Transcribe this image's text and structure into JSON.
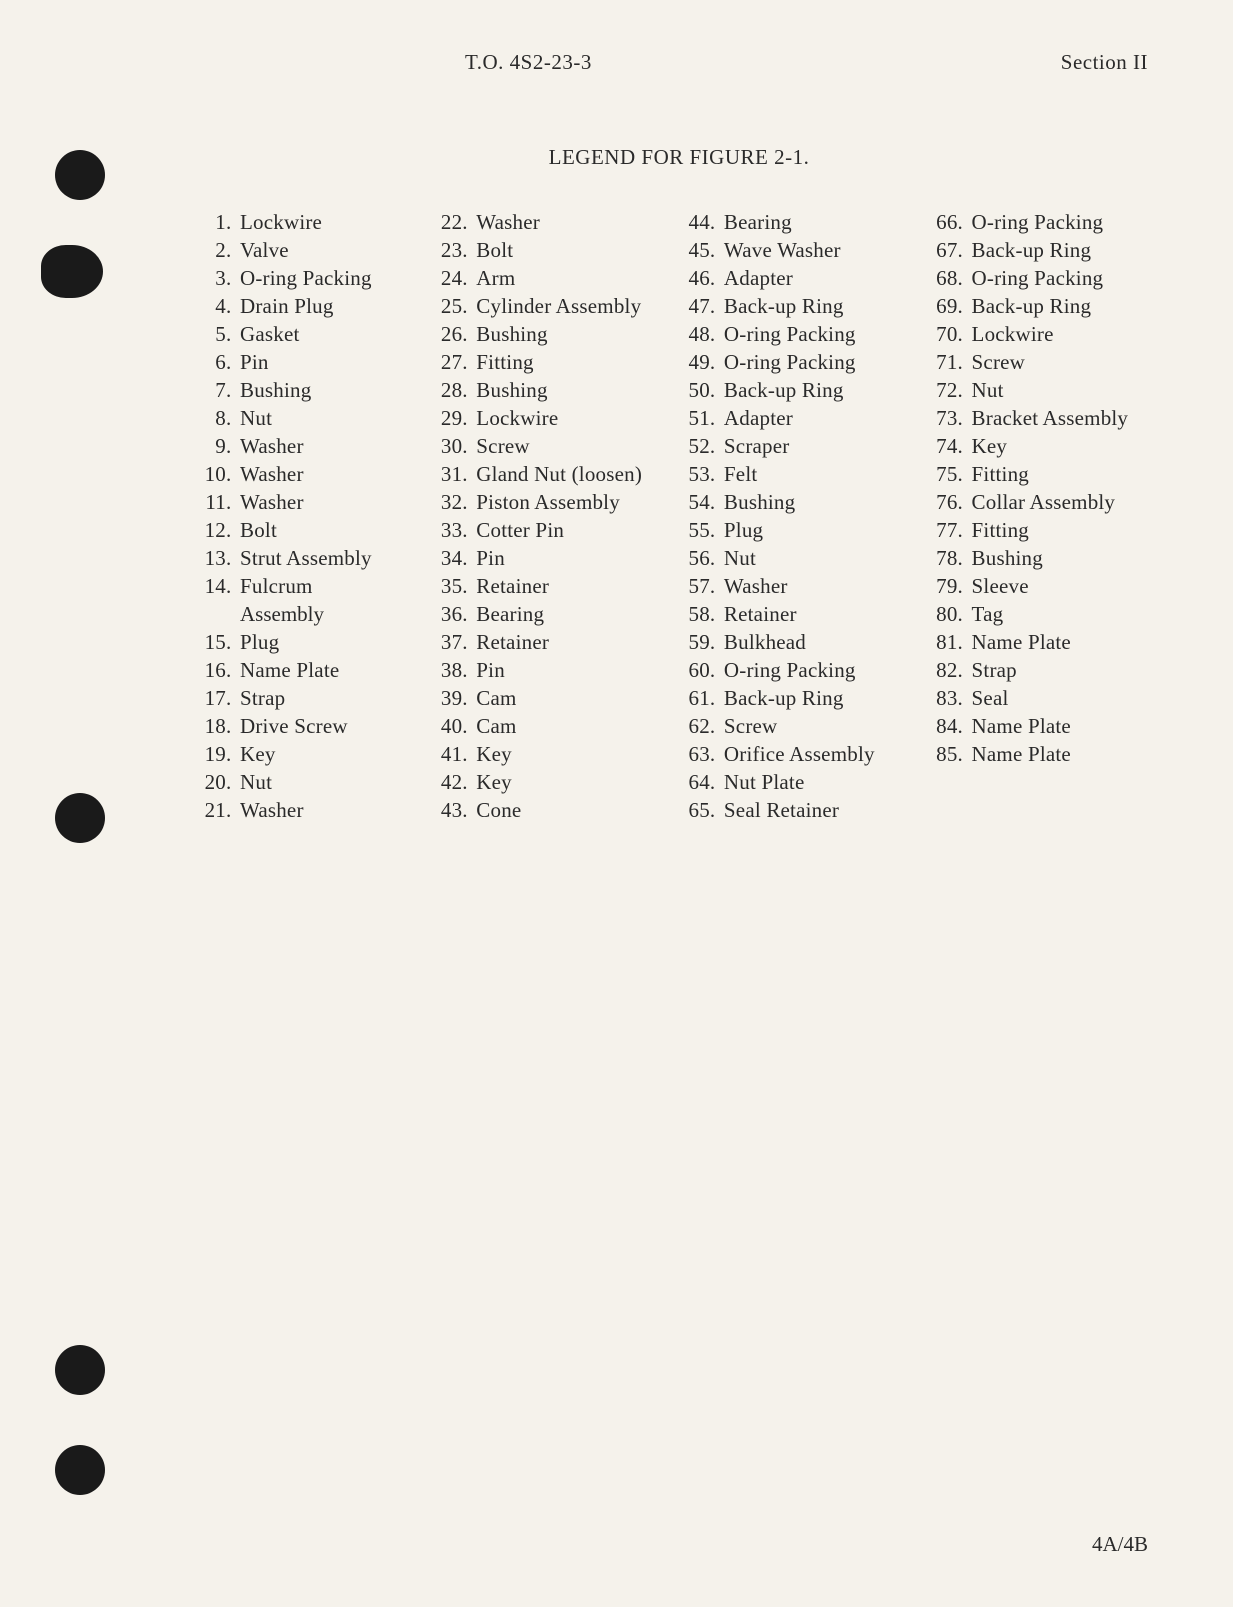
{
  "header": {
    "documentNumber": "T.O. 4S2-23-3",
    "section": "Section II"
  },
  "title": "LEGEND FOR FIGURE 2-1.",
  "columns": [
    [
      {
        "num": "1",
        "text": "Lockwire"
      },
      {
        "num": "2",
        "text": "Valve"
      },
      {
        "num": "3",
        "text": "O-ring Packing"
      },
      {
        "num": "4",
        "text": "Drain Plug"
      },
      {
        "num": "5",
        "text": "Gasket"
      },
      {
        "num": "6",
        "text": "Pin"
      },
      {
        "num": "7",
        "text": "Bushing"
      },
      {
        "num": "8",
        "text": "Nut"
      },
      {
        "num": "9",
        "text": "Washer"
      },
      {
        "num": "10",
        "text": "Washer"
      },
      {
        "num": "11",
        "text": "Washer"
      },
      {
        "num": "12",
        "text": "Bolt"
      },
      {
        "num": "13",
        "text": "Strut Assembly"
      },
      {
        "num": "14",
        "text": "Fulcrum",
        "continuation": "Assembly"
      },
      {
        "num": "15",
        "text": "Plug"
      },
      {
        "num": "16",
        "text": "Name Plate"
      },
      {
        "num": "17",
        "text": "Strap"
      },
      {
        "num": "18",
        "text": "Drive Screw"
      },
      {
        "num": "19",
        "text": "Key"
      },
      {
        "num": "20",
        "text": "Nut"
      },
      {
        "num": "21",
        "text": "Washer"
      }
    ],
    [
      {
        "num": "22",
        "text": "Washer"
      },
      {
        "num": "23",
        "text": "Bolt"
      },
      {
        "num": "24",
        "text": "Arm"
      },
      {
        "num": "25",
        "text": "Cylinder Assembly"
      },
      {
        "num": "26",
        "text": "Bushing"
      },
      {
        "num": "27",
        "text": "Fitting"
      },
      {
        "num": "28",
        "text": "Bushing"
      },
      {
        "num": "29",
        "text": "Lockwire"
      },
      {
        "num": "30",
        "text": "Screw"
      },
      {
        "num": "31",
        "text": "Gland Nut (loosen)"
      },
      {
        "num": "32",
        "text": "Piston Assembly"
      },
      {
        "num": "33",
        "text": "Cotter Pin"
      },
      {
        "num": "34",
        "text": "Pin"
      },
      {
        "num": "35",
        "text": "Retainer"
      },
      {
        "num": "36",
        "text": "Bearing"
      },
      {
        "num": "37",
        "text": "Retainer"
      },
      {
        "num": "38",
        "text": "Pin"
      },
      {
        "num": "39",
        "text": "Cam"
      },
      {
        "num": "40",
        "text": "Cam"
      },
      {
        "num": "41",
        "text": "Key"
      },
      {
        "num": "42",
        "text": "Key"
      },
      {
        "num": "43",
        "text": "Cone"
      }
    ],
    [
      {
        "num": "44",
        "text": "Bearing"
      },
      {
        "num": "45",
        "text": "Wave Washer"
      },
      {
        "num": "46",
        "text": "Adapter"
      },
      {
        "num": "47",
        "text": "Back-up Ring"
      },
      {
        "num": "48",
        "text": "O-ring Packing"
      },
      {
        "num": "49",
        "text": "O-ring Packing"
      },
      {
        "num": "50",
        "text": "Back-up Ring"
      },
      {
        "num": "51",
        "text": "Adapter"
      },
      {
        "num": "52",
        "text": "Scraper"
      },
      {
        "num": "53",
        "text": "Felt"
      },
      {
        "num": "54",
        "text": "Bushing"
      },
      {
        "num": "55",
        "text": "Plug"
      },
      {
        "num": "56",
        "text": "Nut"
      },
      {
        "num": "57",
        "text": "Washer"
      },
      {
        "num": "58",
        "text": "Retainer"
      },
      {
        "num": "59",
        "text": "Bulkhead"
      },
      {
        "num": "60",
        "text": "O-ring Packing"
      },
      {
        "num": "61",
        "text": "Back-up Ring"
      },
      {
        "num": "62",
        "text": "Screw"
      },
      {
        "num": "63",
        "text": "Orifice Assembly"
      },
      {
        "num": "64",
        "text": "Nut Plate"
      },
      {
        "num": "65",
        "text": "Seal Retainer"
      }
    ],
    [
      {
        "num": "66",
        "text": "O-ring Packing"
      },
      {
        "num": "67",
        "text": "Back-up Ring"
      },
      {
        "num": "68",
        "text": "O-ring Packing"
      },
      {
        "num": "69",
        "text": "Back-up Ring"
      },
      {
        "num": "70",
        "text": "Lockwire"
      },
      {
        "num": "71",
        "text": "Screw"
      },
      {
        "num": "72",
        "text": "Nut"
      },
      {
        "num": "73",
        "text": "Bracket Assembly"
      },
      {
        "num": "74",
        "text": "Key"
      },
      {
        "num": "75",
        "text": "Fitting"
      },
      {
        "num": "76",
        "text": "Collar Assembly"
      },
      {
        "num": "77",
        "text": "Fitting"
      },
      {
        "num": "78",
        "text": "Bushing"
      },
      {
        "num": "79",
        "text": "Sleeve"
      },
      {
        "num": "80",
        "text": "Tag"
      },
      {
        "num": "81",
        "text": "Name Plate"
      },
      {
        "num": "82",
        "text": "Strap"
      },
      {
        "num": "83",
        "text": "Seal"
      },
      {
        "num": "84",
        "text": "Name Plate"
      },
      {
        "num": "85",
        "text": "Name Plate"
      }
    ]
  ],
  "footer": "4A/4B",
  "styling": {
    "backgroundColor": "#f5f2eb",
    "textColor": "#2a2a2a",
    "fontFamily": "Times New Roman, Georgia, serif",
    "fontSize": 21,
    "lineHeight": 28,
    "holeColor": "#1a1a1a",
    "pageWidth": 1233,
    "pageHeight": 1607
  }
}
